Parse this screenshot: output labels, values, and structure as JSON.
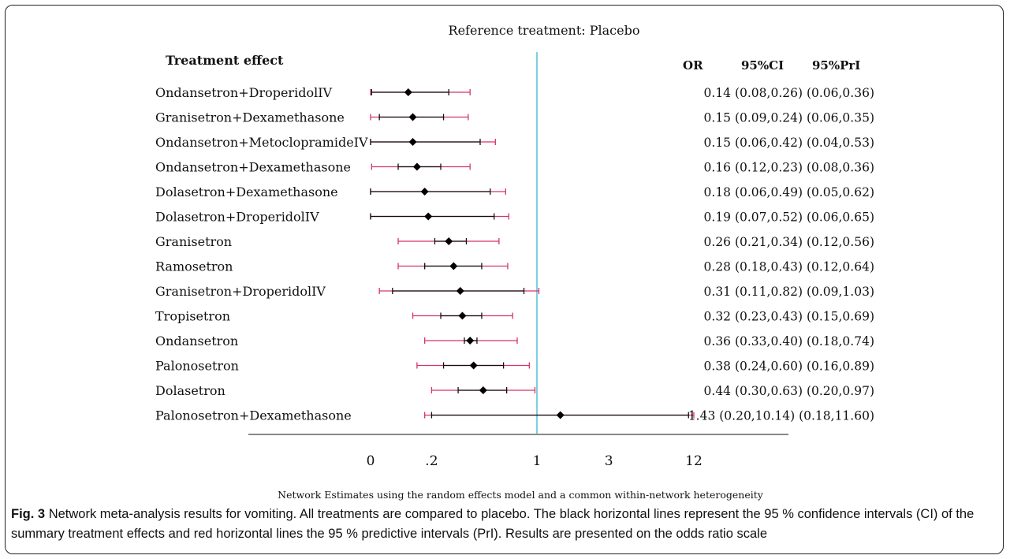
{
  "chart_data": {
    "type": "forest",
    "title": "Reference treatment: Placebo",
    "row_header": "Treatment effect",
    "column_headers": [
      "OR",
      "95%CI",
      "95%PrI"
    ],
    "scale": "log",
    "reference_line": 1,
    "x_tick_labels": [
      "0",
      ".2",
      "1",
      "3",
      "12"
    ],
    "x_tick_values": [
      0.04,
      0.2,
      1,
      3,
      12
    ],
    "footnote": "Network Estimates using the random effects model and a common within-network heterogeneity",
    "rows": [
      {
        "label": "Ondansetron+DroperidolIV",
        "or": 0.14,
        "ci": [
          0.08,
          0.26
        ],
        "pri": [
          0.06,
          0.36
        ],
        "text": "0.14 (0.08,0.26)  (0.06,0.36)"
      },
      {
        "label": "Granisetron+Dexamethasone",
        "or": 0.15,
        "ci": [
          0.09,
          0.24
        ],
        "pri": [
          0.06,
          0.35
        ],
        "text": "0.15 (0.09,0.24)  (0.06,0.35)"
      },
      {
        "label": "Ondansetron+MetoclopramideIV",
        "or": 0.15,
        "ci": [
          0.06,
          0.42
        ],
        "pri": [
          0.04,
          0.53
        ],
        "text": "0.15 (0.06,0.42)  (0.04,0.53)"
      },
      {
        "label": "Ondansetron+Dexamethasone",
        "or": 0.16,
        "ci": [
          0.12,
          0.23
        ],
        "pri": [
          0.08,
          0.36
        ],
        "text": "0.16 (0.12,0.23)  (0.08,0.36)"
      },
      {
        "label": "Dolasetron+Dexamethasone",
        "or": 0.18,
        "ci": [
          0.06,
          0.49
        ],
        "pri": [
          0.05,
          0.62
        ],
        "text": "0.18 (0.06,0.49)  (0.05,0.62)"
      },
      {
        "label": "Dolasetron+DroperidolIV",
        "or": 0.19,
        "ci": [
          0.07,
          0.52
        ],
        "pri": [
          0.06,
          0.65
        ],
        "text": "0.19 (0.07,0.52)  (0.06,0.65)"
      },
      {
        "label": "Granisetron",
        "or": 0.26,
        "ci": [
          0.21,
          0.34
        ],
        "pri": [
          0.12,
          0.56
        ],
        "text": "0.26 (0.21,0.34)  (0.12,0.56)"
      },
      {
        "label": "Ramosetron",
        "or": 0.28,
        "ci": [
          0.18,
          0.43
        ],
        "pri": [
          0.12,
          0.64
        ],
        "text": "0.28 (0.18,0.43)  (0.12,0.64)"
      },
      {
        "label": "Granisetron+DroperidolIV",
        "or": 0.31,
        "ci": [
          0.11,
          0.82
        ],
        "pri": [
          0.09,
          1.03
        ],
        "text": "0.31 (0.11,0.82)  (0.09,1.03)"
      },
      {
        "label": "Tropisetron",
        "or": 0.32,
        "ci": [
          0.23,
          0.43
        ],
        "pri": [
          0.15,
          0.69
        ],
        "text": "0.32 (0.23,0.43)  (0.15,0.69)"
      },
      {
        "label": "Ondansetron",
        "or": 0.36,
        "ci": [
          0.33,
          0.4
        ],
        "pri": [
          0.18,
          0.74
        ],
        "text": "0.36 (0.33,0.40)  (0.18,0.74)"
      },
      {
        "label": "Palonosetron",
        "or": 0.38,
        "ci": [
          0.24,
          0.6
        ],
        "pri": [
          0.16,
          0.89
        ],
        "text": "0.38 (0.24,0.60)  (0.16,0.89)"
      },
      {
        "label": "Dolasetron",
        "or": 0.44,
        "ci": [
          0.3,
          0.63
        ],
        "pri": [
          0.2,
          0.97
        ],
        "text": "0.44 (0.30,0.63)  (0.20,0.97)"
      },
      {
        "label": "Palonosetron+Dexamethasone",
        "or": 1.43,
        "ci": [
          0.2,
          10.14
        ],
        "pri": [
          0.18,
          11.6
        ],
        "text": "1.43 (0.20,10.14)  (0.18,11.60)"
      }
    ]
  },
  "caption": {
    "label": "Fig. 3",
    "text": "Network meta-analysis results for vomiting. All treatments are compared to placebo. The black horizontal lines represent the 95 % confidence intervals (CI) of the summary treatment effects and red horizontal lines the 95 % predictive intervals (PrI). Results are presented on the odds ratio scale"
  },
  "colors": {
    "ci_line": "#111111",
    "pri_line": "#d6336c",
    "reference_line": "#2ab0c8",
    "marker": "#000000"
  }
}
